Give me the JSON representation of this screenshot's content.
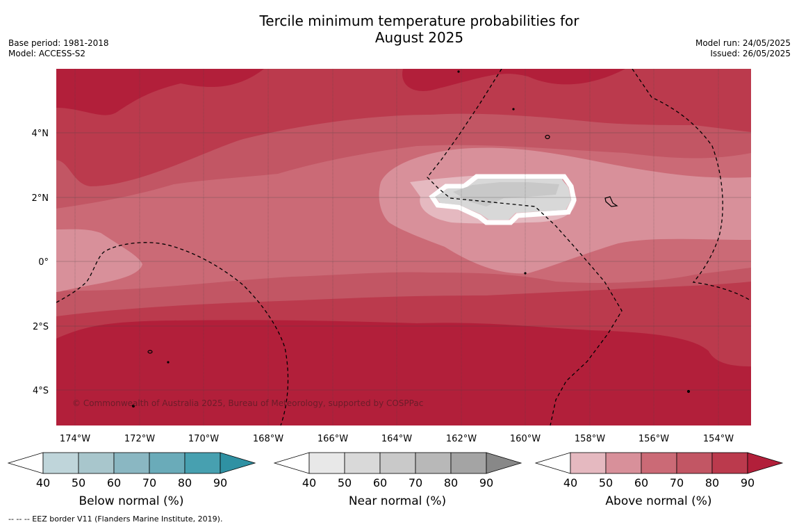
{
  "title_line1": "Tercile minimum temperature probabilities for",
  "title_line2": "August 2025",
  "meta_left": {
    "base_period": "Base period: 1981-2018",
    "model": "Model: ACCESS-S2"
  },
  "meta_right": {
    "model_run": "Model run: 24/05/2025",
    "issued": "Issued: 26/05/2025"
  },
  "map": {
    "lat_labels": [
      "4°N",
      "2°N",
      "0°",
      "2°S",
      "4°S"
    ],
    "lon_labels": [
      "174°W",
      "172°W",
      "170°W",
      "168°W",
      "166°W",
      "164°W",
      "162°W",
      "160°W",
      "158°W",
      "156°W",
      "154°W"
    ],
    "copyright": "© Commonwealth of Australia 2025, Bureau of Meteorology, supported by COSPPac",
    "colors": {
      "above_40": "#e5b9c0",
      "above_50": "#d8909a",
      "above_60": "#cb6a76",
      "above_70": "#c25664",
      "above_80": "#bb3a4d",
      "above_90": "#b21f3a",
      "near_50": "#d8d8d8",
      "near_60": "#c8c8c8"
    }
  },
  "colorbars": [
    {
      "title": "Below normal (%)",
      "ticks": [
        "40",
        "50",
        "60",
        "70",
        "80",
        "90"
      ],
      "colors": [
        "#ffffff",
        "#bfd5da",
        "#a8c6cc",
        "#8ab7c2",
        "#6aabb9",
        "#47a0b0",
        "#2f91a3"
      ]
    },
    {
      "title": "Near normal (%)",
      "ticks": [
        "40",
        "50",
        "60",
        "70",
        "80",
        "90"
      ],
      "colors": [
        "#ffffff",
        "#e8e8e8",
        "#d9d9d9",
        "#c9c9c9",
        "#b8b8b8",
        "#a4a4a4",
        "#888888"
      ]
    },
    {
      "title": "Above normal (%)",
      "ticks": [
        "40",
        "50",
        "60",
        "70",
        "80",
        "90"
      ],
      "colors": [
        "#ffffff",
        "#e5b9c0",
        "#d8909a",
        "#cb6a76",
        "#c25664",
        "#bb3a4d",
        "#b21f3a"
      ]
    }
  ],
  "footer": "--  --  -- EEZ border V11 (Flanders Marine Institute, 2019)."
}
